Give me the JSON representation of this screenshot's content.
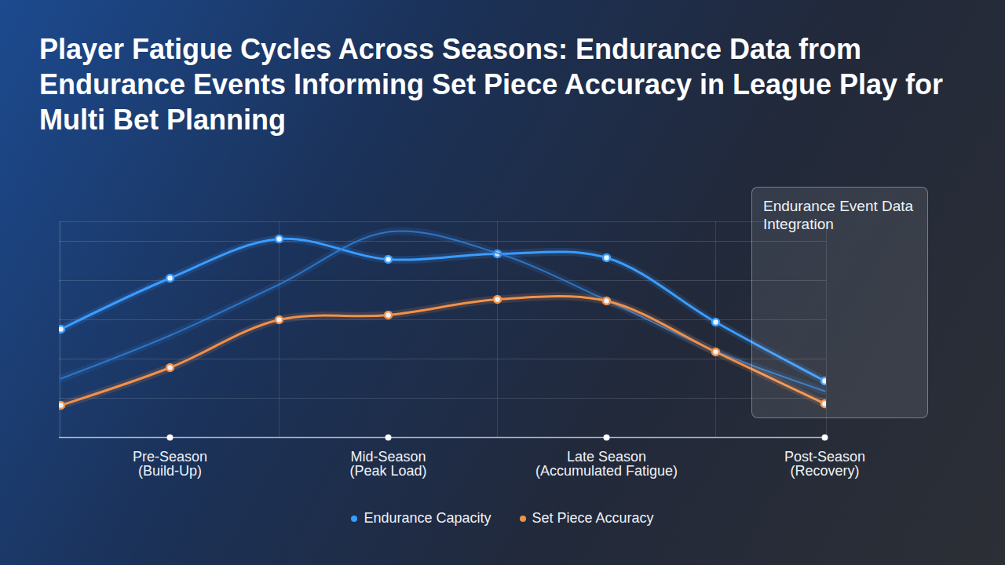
{
  "chart_data": {
    "type": "line",
    "title": "Player Fatigue Cycles Across Seasons: Endurance Data from Endurance Events Informing Set Piece Accuracy in League Play for Multi Bet Planning",
    "categories": [
      null,
      "Pre-Season (Build-Up)",
      null,
      "Mid-Season (Peak Load)",
      null,
      "Late Season (Accumulated Fatigue)",
      null,
      "Post-Season (Recovery)"
    ],
    "series": [
      {
        "name": "Endurance Capacity",
        "color": "#3b9cff",
        "marker": "circle",
        "line_style": "solid",
        "values": [
          2.76,
          4.06,
          5.06,
          4.54,
          4.68,
          4.58,
          2.94,
          1.44
        ]
      },
      {
        "name": null,
        "color": "#2f7fd6",
        "marker": "none",
        "line_style": "solid",
        "values": [
          1.5,
          2.6,
          3.9,
          5.24,
          4.7,
          3.5,
          2.2,
          1.18
        ]
      },
      {
        "name": "Set Piece Accuracy",
        "color": "#f0914a",
        "marker": "circle",
        "line_style": "solid",
        "values": [
          0.82,
          1.78,
          3.0,
          3.12,
          3.52,
          3.48,
          2.18,
          0.86
        ]
      }
    ],
    "ylim": [
      0,
      5.5
    ],
    "yticks": [
      1,
      2,
      3,
      4,
      5
    ],
    "grid": true,
    "tick_labels": "x",
    "legend": "bottom",
    "annotations": [
      "Endurance Event Data Integration"
    ]
  }
}
